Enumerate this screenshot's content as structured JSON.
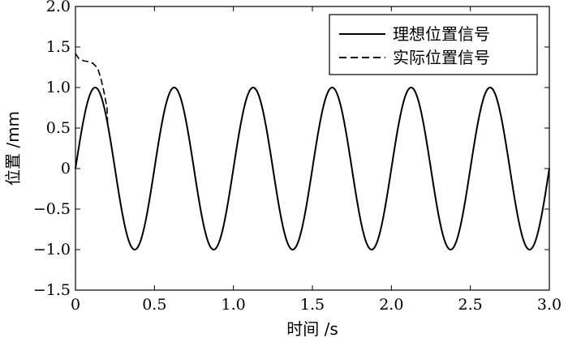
{
  "chart_data": {
    "type": "line",
    "title": "",
    "xlabel": "时间 /s",
    "ylabel": "位置 /mm",
    "xlim": [
      0,
      3.0
    ],
    "ylim": [
      -1.5,
      2.0
    ],
    "x_ticks": [
      0,
      0.5,
      1.0,
      1.5,
      2.0,
      2.5,
      3.0
    ],
    "x_tick_labels": [
      "0",
      "0.5",
      "1.0",
      "1.5",
      "2.0",
      "2.5",
      "3.0"
    ],
    "y_ticks": [
      -1.5,
      -1.0,
      -0.5,
      0,
      0.5,
      1.0,
      1.5,
      2.0
    ],
    "y_tick_labels": [
      "−1.5",
      "−1.0",
      "−0.5",
      "0",
      "0.5",
      "1.0",
      "1.5",
      "2.0"
    ],
    "grid": false,
    "legend_position": "top-right",
    "series": [
      {
        "name": "理想位置信号",
        "style": "solid",
        "color": "#000000",
        "function": "sine",
        "amplitude": 1.0,
        "period": 0.5,
        "sample_points": [
          [
            0,
            0
          ],
          [
            0.125,
            1.0
          ],
          [
            0.375,
            -1.0
          ],
          [
            0.625,
            1.0
          ],
          [
            0.875,
            -1.0
          ],
          [
            1.125,
            1.0
          ],
          [
            1.375,
            -1.0
          ],
          [
            1.625,
            1.0
          ],
          [
            1.875,
            -1.0
          ],
          [
            2.125,
            1.0
          ],
          [
            2.375,
            -1.0
          ],
          [
            2.625,
            1.0
          ],
          [
            2.875,
            -1.0
          ],
          [
            3.0,
            0
          ]
        ]
      },
      {
        "name": "实际位置信号",
        "style": "dashed",
        "color": "#000000",
        "initial_points": [
          [
            0.0,
            1.42
          ],
          [
            0.02,
            1.36
          ],
          [
            0.05,
            1.33
          ],
          [
            0.08,
            1.32
          ],
          [
            0.11,
            1.3
          ],
          [
            0.14,
            1.24
          ],
          [
            0.16,
            1.12
          ],
          [
            0.18,
            0.95
          ],
          [
            0.2,
            0.75
          ]
        ],
        "note_merges_with_ideal_after": 0.2
      }
    ]
  }
}
